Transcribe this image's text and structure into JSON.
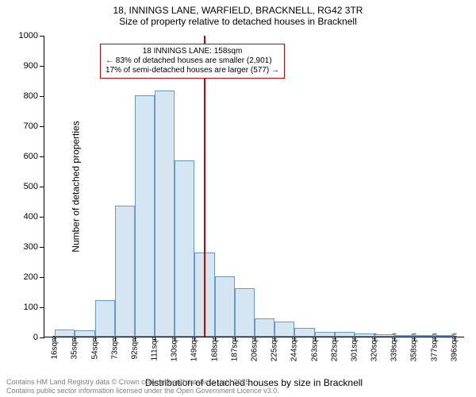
{
  "titles": {
    "line1": "18, INNINGS LANE, WARFIELD, BRACKNELL, RG42 3TR",
    "line2": "Size of property relative to detached houses in Bracknell"
  },
  "chart": {
    "type": "histogram",
    "ylabel": "Number of detached properties",
    "xlabel": "Distribution of detached houses by size in Bracknell",
    "ylim": [
      0,
      1000
    ],
    "yticks": [
      0,
      100,
      200,
      300,
      400,
      500,
      600,
      700,
      800,
      900,
      1000
    ],
    "xticks": [
      16,
      35,
      54,
      73,
      92,
      111,
      130,
      149,
      168,
      187,
      206,
      225,
      244,
      263,
      282,
      301,
      320,
      339,
      358,
      377,
      396
    ],
    "xtick_suffix": "sqm",
    "xlim": [
      6,
      406
    ],
    "bars": {
      "bin_edges": [
        16,
        35,
        54,
        73,
        92,
        111,
        130,
        149,
        168,
        187,
        206,
        225,
        244,
        263,
        282,
        301,
        320,
        339,
        358,
        377,
        396
      ],
      "counts": [
        25,
        20,
        120,
        435,
        800,
        815,
        585,
        280,
        200,
        160,
        60,
        50,
        30,
        15,
        15,
        10,
        8,
        5,
        5,
        3
      ]
    },
    "bar_fill": "#d6e5f2",
    "bar_border": "#6699cc",
    "background_color": "#ffffff",
    "vline": {
      "x": 158,
      "color": "#cc0000"
    },
    "annotation": {
      "line1": "18 INNINGS LANE: 158sqm",
      "line2": "← 83% of detached houses are smaller (2,901)",
      "line3": "17% of semi-detached houses are larger (577) →",
      "border_color": "#cc0000",
      "bg_color": "#ffffff",
      "fontsize": 10
    }
  },
  "footer": {
    "line1": "Contains HM Land Registry data © Crown copyright and database right 2025.",
    "line2": "Contains public sector information licensed under the Open Government Licence v3.0.",
    "color": "#808080"
  }
}
